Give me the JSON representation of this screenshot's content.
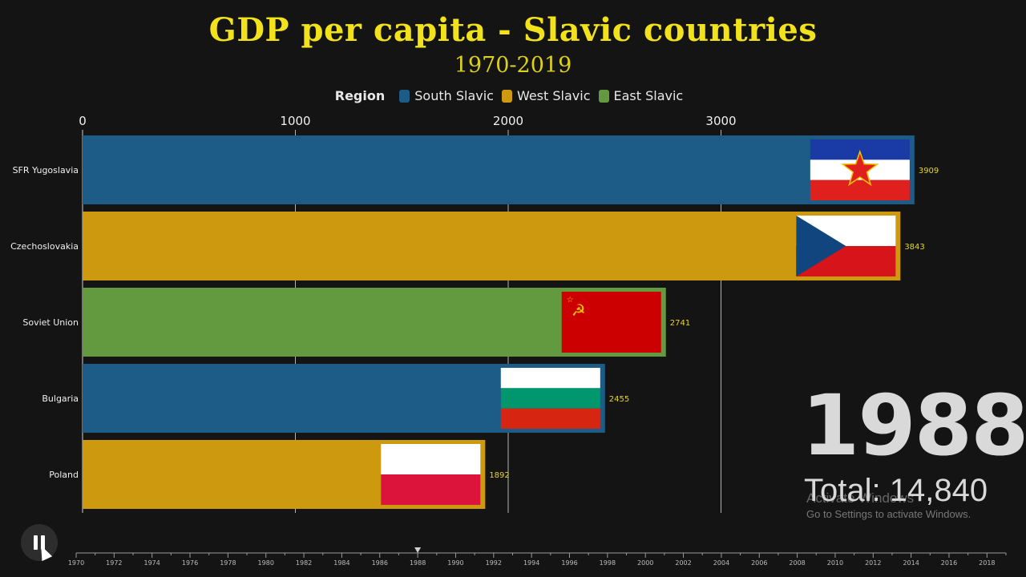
{
  "title": "GDP per capita - Slavic countries",
  "subtitle": "1970-2019",
  "legend": {
    "title": "Region",
    "items": [
      {
        "label": "South Slavic",
        "color": "#1d5c87"
      },
      {
        "label": "West Slavic",
        "color": "#cc990f"
      },
      {
        "label": "East Slavic",
        "color": "#649a3f"
      }
    ]
  },
  "current_year": "1988",
  "total_label": "Total: 14,840",
  "watermark": {
    "line1": "Activate Windows",
    "line2": "Go to Settings to activate Windows."
  },
  "colors": {
    "background": "#141414",
    "title": "#f2e21c",
    "value_label": "#e6d52a"
  },
  "controls": {
    "play_state": "paused",
    "icon": "pause-icon"
  },
  "chart_data": {
    "type": "bar",
    "orientation": "horizontal",
    "title": "GDP per capita - Slavic countries",
    "subtitle": "1970-2019",
    "xlim": [
      0,
      3909
    ],
    "x_ticks": [
      0,
      1000,
      2000,
      3000
    ],
    "grid": true,
    "legend_position": "top-center",
    "categories": [
      "SFR Yugoslavia",
      "Czechoslovakia",
      "Soviet Union",
      "Bulgaria",
      "Poland"
    ],
    "values": [
      3909,
      3843,
      2741,
      2455,
      1892
    ],
    "regions": [
      "South Slavic",
      "West Slavic",
      "East Slavic",
      "South Slavic",
      "West Slavic"
    ],
    "flags": [
      "yugoslavia",
      "czechoslovakia",
      "soviet-union",
      "bulgaria",
      "poland"
    ],
    "timeline": {
      "start": 1970,
      "end": 2019,
      "current": 1988,
      "labels": [
        "1970",
        "1972",
        "1974",
        "1976",
        "1978",
        "1980",
        "1982",
        "1984",
        "1986",
        "1988",
        "1990",
        "1992",
        "1994",
        "1996",
        "1998",
        "2000",
        "2002",
        "2004",
        "2006",
        "2008",
        "2010",
        "2012",
        "2014",
        "2016",
        "2018"
      ]
    }
  }
}
